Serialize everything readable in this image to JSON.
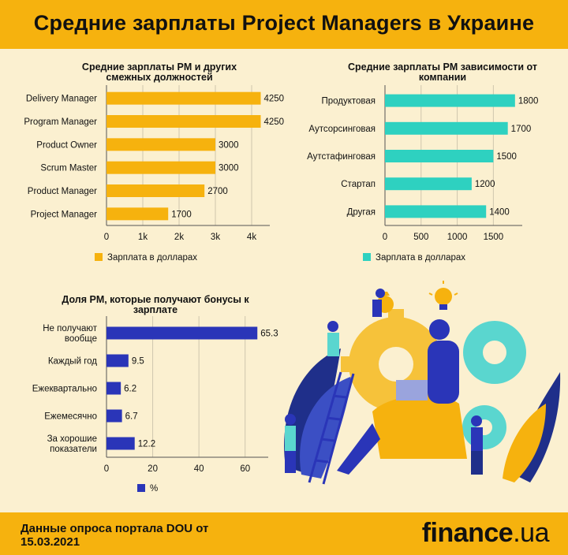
{
  "header": {
    "title": "Средние зарплаты Project Managers в Украине"
  },
  "colors": {
    "header_bg": "#f6b20e",
    "bar_orange": "#f6b20e",
    "bar_teal": "#2ed1c0",
    "bar_blue": "#2a35b8",
    "background": "#fbf0d0"
  },
  "chart_data": [
    {
      "type": "bar",
      "orientation": "horizontal",
      "title": "Средние зарплаты PM и других смежных должностей",
      "categories": [
        "Delivery Manager",
        "Program Manager",
        "Product Owner",
        "Scrum Master",
        "Product Manager",
        "Project Manager"
      ],
      "values": [
        4250,
        4250,
        3000,
        3000,
        2700,
        1700
      ],
      "series": [
        {
          "name": "Зарплата в долларах",
          "values": [
            4250,
            4250,
            3000,
            3000,
            2700,
            1700
          ]
        }
      ],
      "xlim": [
        0,
        4500
      ],
      "xticks": [
        0,
        1000,
        2000,
        3000,
        4000
      ],
      "xtick_labels": [
        "0",
        "1k",
        "2k",
        "3k",
        "4k"
      ],
      "grid": true,
      "legend": "bottom",
      "color": "#f6b20e"
    },
    {
      "type": "bar",
      "orientation": "horizontal",
      "title": "Средние зарплаты PM зависимости от компании",
      "categories": [
        "Продуктовая",
        "Аутсорсинговая",
        "Аутстафинговая",
        "Стартап",
        "Другая"
      ],
      "values": [
        1800,
        1700,
        1500,
        1200,
        1400
      ],
      "series": [
        {
          "name": "Зарплата в долларах",
          "values": [
            1800,
            1700,
            1500,
            1200,
            1400
          ]
        }
      ],
      "xlim": [
        0,
        1900
      ],
      "xticks": [
        0,
        500,
        1000,
        1500
      ],
      "xtick_labels": [
        "0",
        "500",
        "1000",
        "1500"
      ],
      "grid": true,
      "legend": "bottom",
      "color": "#2ed1c0"
    },
    {
      "type": "bar",
      "orientation": "horizontal",
      "title": "Доля PM, которые получают бонусы к зарплате",
      "categories": [
        "Не получают вообще",
        "Каждый год",
        "Ежеквартально",
        "Ежемесячно",
        "За хорошие показатели"
      ],
      "category_lines": [
        [
          "Не получают",
          "вообще"
        ],
        [
          "Каждый год"
        ],
        [
          "Ежеквартально"
        ],
        [
          "Ежемесячно"
        ],
        [
          "За хорошие",
          "показатели"
        ]
      ],
      "values": [
        65.3,
        9.5,
        6.2,
        6.7,
        12.2
      ],
      "series": [
        {
          "name": "%",
          "values": [
            65.3,
            9.5,
            6.2,
            6.7,
            12.2
          ]
        }
      ],
      "xlim": [
        0,
        70
      ],
      "xticks": [
        0,
        20,
        40,
        60
      ],
      "xtick_labels": [
        "0",
        "20",
        "40",
        "60"
      ],
      "grid": true,
      "legend": "bottom",
      "color": "#2a35b8"
    }
  ],
  "footer": {
    "source_line1": "Данные опроса портала DOU от",
    "source_line2": "15.03.2021",
    "brand_main": "finance",
    "brand_suffix": ".ua"
  },
  "illustration": {
    "icons": [
      "people-working-gears-illustration",
      "lightbulb-icon",
      "money-bag-icon"
    ]
  }
}
